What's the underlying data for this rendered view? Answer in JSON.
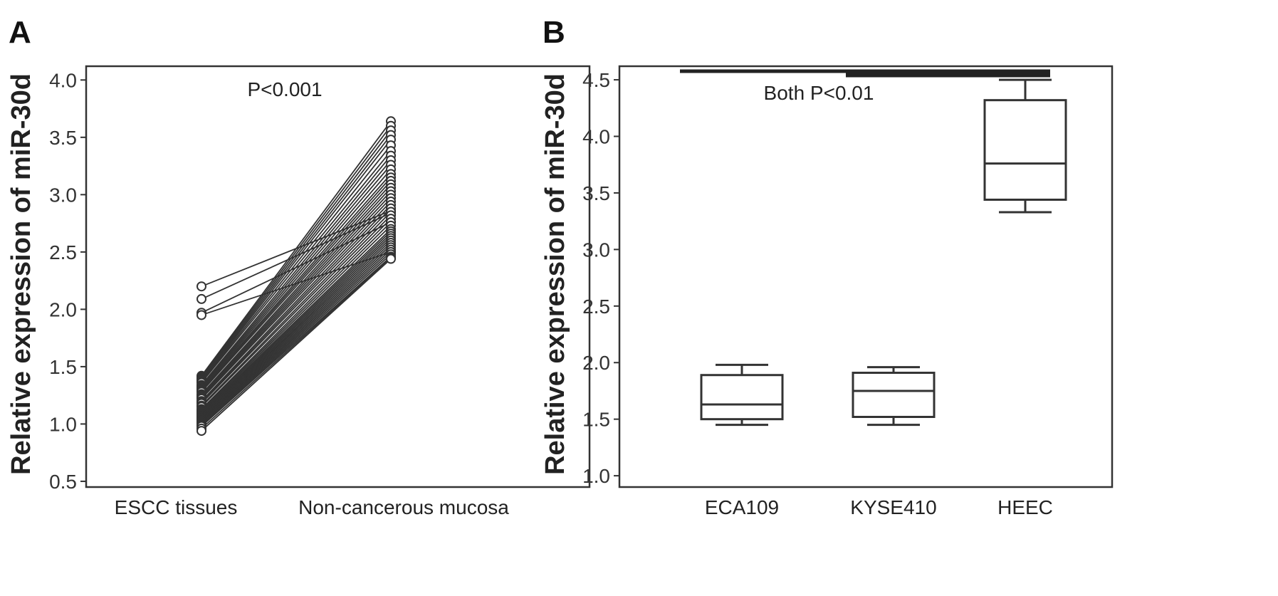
{
  "chart_data": [
    {
      "panel": "A",
      "type": "line",
      "subtype": "paired-points",
      "categories": [
        "ESCC tissues",
        "Non-cancerous mucosa"
      ],
      "ylabel": "Relative expression of miR-30d",
      "ylim": [
        0.45,
        4.12
      ],
      "yticks": [
        "0.5",
        "1.0",
        "1.5",
        "2.0",
        "2.5",
        "3.0",
        "3.5",
        "4.0"
      ],
      "annotation": "P<0.001",
      "pairs": [
        [
          2.2,
          2.86
        ],
        [
          2.09,
          2.84
        ],
        [
          1.97,
          2.76
        ],
        [
          1.95,
          2.5
        ],
        [
          1.42,
          3.64
        ],
        [
          1.41,
          3.6
        ],
        [
          1.4,
          3.56
        ],
        [
          1.39,
          3.52
        ],
        [
          1.38,
          3.48
        ],
        [
          1.37,
          3.43
        ],
        [
          1.36,
          3.38
        ],
        [
          1.34,
          3.34
        ],
        [
          1.33,
          3.3
        ],
        [
          1.32,
          3.26
        ],
        [
          1.31,
          3.22
        ],
        [
          1.3,
          3.18
        ],
        [
          1.29,
          3.15
        ],
        [
          1.28,
          3.12
        ],
        [
          1.26,
          3.09
        ],
        [
          1.25,
          3.06
        ],
        [
          1.24,
          3.03
        ],
        [
          1.23,
          3.0
        ],
        [
          1.22,
          2.97
        ],
        [
          1.2,
          2.94
        ],
        [
          1.19,
          2.91
        ],
        [
          1.18,
          2.88
        ],
        [
          1.16,
          2.85
        ],
        [
          1.15,
          2.82
        ],
        [
          1.13,
          2.79
        ],
        [
          1.12,
          2.76
        ],
        [
          1.11,
          2.73
        ],
        [
          1.1,
          2.7
        ],
        [
          1.09,
          2.68
        ],
        [
          1.08,
          2.66
        ],
        [
          1.07,
          2.64
        ],
        [
          1.06,
          2.62
        ],
        [
          1.05,
          2.6
        ],
        [
          1.04,
          2.58
        ],
        [
          1.03,
          2.56
        ],
        [
          1.02,
          2.54
        ],
        [
          1.01,
          2.52
        ],
        [
          1.0,
          2.5
        ],
        [
          0.99,
          2.48
        ],
        [
          0.98,
          2.46
        ],
        [
          0.96,
          2.45
        ],
        [
          0.94,
          2.44
        ]
      ]
    },
    {
      "panel": "B",
      "type": "box",
      "categories": [
        "ECA109",
        "KYSE410",
        "HEEC"
      ],
      "ylabel": "Relative expression of miR-30d",
      "ylim": [
        0.9,
        4.62
      ],
      "yticks": [
        "1.0",
        "1.5",
        "2.0",
        "2.5",
        "3.0",
        "3.5",
        "4.0",
        "4.5"
      ],
      "annotation": "Both P<0.01",
      "boxes": [
        {
          "min": 1.45,
          "q1": 1.5,
          "median": 1.63,
          "q3": 1.89,
          "max": 1.98
        },
        {
          "min": 1.45,
          "q1": 1.52,
          "median": 1.75,
          "q3": 1.91,
          "max": 1.96
        },
        {
          "min": 3.33,
          "q1": 3.44,
          "median": 3.76,
          "q3": 4.32,
          "max": 4.5
        }
      ],
      "comparisons": [
        {
          "from": "ECA109",
          "to": "HEEC"
        },
        {
          "from": "KYSE410",
          "to": "HEEC"
        }
      ]
    }
  ]
}
